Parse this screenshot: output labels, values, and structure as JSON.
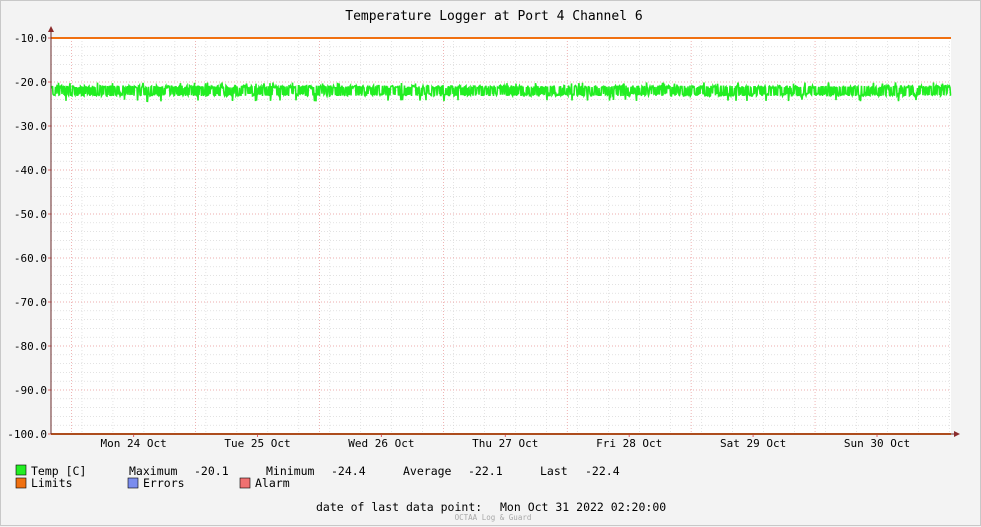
{
  "chart_data": {
    "type": "line",
    "title": "Temperature Logger at Port 4 Channel 6",
    "y_ticks": [
      "-10.0",
      "-20.0",
      "-30.0",
      "-40.0",
      "-50.0",
      "-60.0",
      "-70.0",
      "-80.0",
      "-90.0",
      "-100.0"
    ],
    "ylim": [
      -100,
      -10
    ],
    "x_ticks": [
      "Mon 24 Oct",
      "Tue 25 Oct",
      "Wed 26 Oct",
      "Thu 27 Oct",
      "Fri 28 Oct",
      "Sat 29 Oct",
      "Sun 30 Oct"
    ],
    "xlim": [
      "2022-10-23 20:00",
      "2022-10-31 02:20"
    ],
    "grid": true,
    "series": [
      {
        "name": "Temp [C]",
        "color": "#22ee22",
        "min": -24.4,
        "max": -20.1,
        "typical_range": [
          -23.2,
          -20.8
        ]
      },
      {
        "name": "Limits",
        "color": "#f07010",
        "values": [
          -10.0,
          -100.0
        ]
      }
    ],
    "legend": {
      "temp_label": "Temp [C]",
      "maximum_label": "Maximum",
      "maximum_value": "-20.1",
      "minimum_label": "Minimum",
      "minimum_value": "-24.4",
      "average_label": "Average",
      "average_value": "-22.1",
      "last_label": "Last",
      "last_value": "-22.4",
      "limits_label": "Limits",
      "errors_label": "Errors",
      "alarm_label": "Alarm",
      "colors": {
        "temp": "#22ee22",
        "limits": "#f07010",
        "errors": "#7a8cee",
        "alarm": "#f07070"
      }
    },
    "last_data_point_label": "date of last data point:",
    "last_data_point_value": "Mon Oct 31 2022 02:20:00",
    "watermark": "OCTAA Log & Guard"
  }
}
